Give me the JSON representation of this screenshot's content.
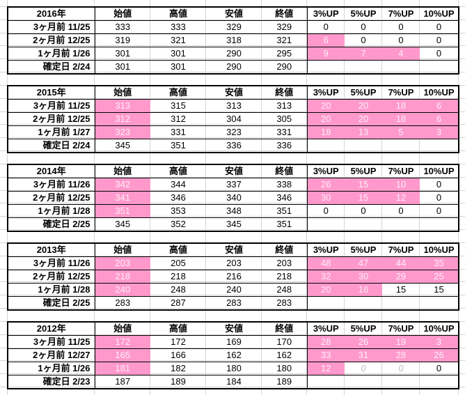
{
  "colors": {
    "highlight": "#ff99cc",
    "highlight_text": "#ffeef6",
    "grid": "#d4d4d4",
    "faint": "#c0c0c0"
  },
  "headers": [
    "始値",
    "高値",
    "安値",
    "終値",
    "3%UP",
    "5%UP",
    "7%UP",
    "10%UP"
  ],
  "blocks": [
    {
      "year": "2016年",
      "rows": [
        {
          "label": "3ヶ月前 11/25",
          "open": "333",
          "high": "333",
          "low": "329",
          "close": "329",
          "up3": "0",
          "up5": "0",
          "up7": "0",
          "up10": "0"
        },
        {
          "label": "2ヶ月前 12/25",
          "open": "319",
          "high": "321",
          "low": "318",
          "close": "321",
          "up3": "6",
          "up5": "0",
          "up7": "0",
          "up10": "0"
        },
        {
          "label": "1ヶ月前 1/26",
          "open": "301",
          "high": "301",
          "low": "290",
          "close": "295",
          "up3": "9",
          "up5": "7",
          "up7": "4",
          "up10": "0"
        },
        {
          "label": "確定日 2/24",
          "open": "301",
          "high": "301",
          "low": "290",
          "close": "290",
          "up3": "",
          "up5": "",
          "up7": "",
          "up10": ""
        }
      ]
    },
    {
      "year": "2015年",
      "rows": [
        {
          "label": "3ヶ月前 11/25",
          "open": "313",
          "high": "315",
          "low": "313",
          "close": "313",
          "up3": "20",
          "up5": "20",
          "up7": "18",
          "up10": "6"
        },
        {
          "label": "2ヶ月前 12/25",
          "open": "312",
          "high": "312",
          "low": "304",
          "close": "305",
          "up3": "20",
          "up5": "20",
          "up7": "18",
          "up10": "6"
        },
        {
          "label": "1ヶ月前 1/27",
          "open": "323",
          "high": "331",
          "low": "323",
          "close": "331",
          "up3": "18",
          "up5": "13",
          "up7": "5",
          "up10": "3"
        },
        {
          "label": "確定日 2/24",
          "open": "345",
          "high": "351",
          "low": "336",
          "close": "336",
          "up3": "",
          "up5": "",
          "up7": "",
          "up10": ""
        }
      ]
    },
    {
      "year": "2014年",
      "rows": [
        {
          "label": "3ヶ月前 11/26",
          "open": "342",
          "high": "344",
          "low": "337",
          "close": "338",
          "up3": "26",
          "up5": "15",
          "up7": "10",
          "up10": "0"
        },
        {
          "label": "2ヶ月前 12/25",
          "open": "341",
          "high": "346",
          "low": "340",
          "close": "346",
          "up3": "30",
          "up5": "15",
          "up7": "12",
          "up10": "0"
        },
        {
          "label": "1ヶ月前 1/28",
          "open": "351",
          "high": "353",
          "low": "348",
          "close": "351",
          "up3": "0",
          "up5": "0",
          "up7": "0",
          "up10": "0"
        },
        {
          "label": "確定日 2/25",
          "open": "345",
          "high": "352",
          "low": "345",
          "close": "351",
          "up3": "",
          "up5": "",
          "up7": "",
          "up10": ""
        }
      ]
    },
    {
      "year": "2013年",
      "rows": [
        {
          "label": "3ヶ月前 11/26",
          "open": "203",
          "high": "205",
          "low": "203",
          "close": "203",
          "up3": "48",
          "up5": "47",
          "up7": "44",
          "up10": "35"
        },
        {
          "label": "2ヶ月前 12/25",
          "open": "218",
          "high": "218",
          "low": "216",
          "close": "218",
          "up3": "32",
          "up5": "30",
          "up7": "29",
          "up10": "25"
        },
        {
          "label": "1ヶ月前 1/28",
          "open": "240",
          "high": "248",
          "low": "240",
          "close": "248",
          "up3": "20",
          "up5": "16",
          "up7": "15",
          "up10": "15"
        },
        {
          "label": "確定日 2/25",
          "open": "283",
          "high": "287",
          "low": "283",
          "close": "283",
          "up3": "",
          "up5": "",
          "up7": "",
          "up10": ""
        }
      ]
    },
    {
      "year": "2012年",
      "rows": [
        {
          "label": "3ヶ月前 11/25",
          "open": "172",
          "high": "172",
          "low": "169",
          "close": "170",
          "up3": "28",
          "up5": "26",
          "up7": "19",
          "up10": "3"
        },
        {
          "label": "2ヶ月前 12/27",
          "open": "165",
          "high": "166",
          "low": "162",
          "close": "162",
          "up3": "33",
          "up5": "31",
          "up7": "28",
          "up10": "26"
        },
        {
          "label": "1ヶ月前 1/26",
          "open": "181",
          "high": "182",
          "low": "180",
          "close": "180",
          "up3": "12",
          "up5": "0",
          "up7": "0",
          "up10": "0"
        },
        {
          "label": "確定日 2/23",
          "open": "187",
          "high": "189",
          "low": "184",
          "close": "189",
          "up3": "",
          "up5": "",
          "up7": "",
          "up10": ""
        }
      ]
    }
  ]
}
